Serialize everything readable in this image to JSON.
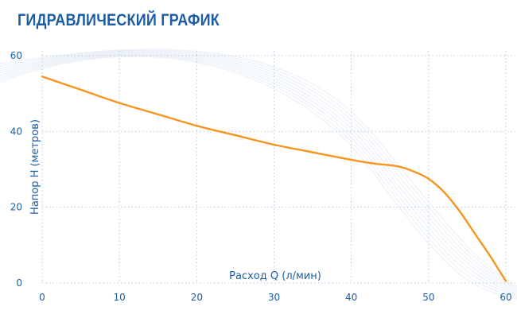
{
  "header": {
    "title": "ГИДРАВЛИЧЕСКИЙ ГРАФИК"
  },
  "chart_data": {
    "type": "line",
    "title": "ГИДРАВЛИЧЕСКИЙ ГРАФИК",
    "xlabel": "Расход Q (л/мин)",
    "ylabel": "Напор H (метров)",
    "xlim": [
      0,
      60
    ],
    "ylim": [
      0,
      60
    ],
    "xticks": [
      0,
      10,
      20,
      30,
      40,
      50,
      60
    ],
    "yticks": [
      0,
      20,
      40,
      60
    ],
    "grid": true,
    "colors": {
      "line": "#f7941d",
      "text": "#1b5ea6",
      "grid": "#b9cbe0"
    },
    "series": [
      {
        "x": [
          0,
          5,
          10,
          15,
          20,
          25,
          30,
          35,
          40,
          43,
          46,
          48,
          50,
          52,
          54,
          56,
          58,
          60
        ],
        "values": [
          54.5,
          51,
          47.5,
          44.5,
          41.5,
          39,
          36.5,
          34.5,
          32.5,
          31.5,
          30.8,
          29.5,
          27.5,
          24,
          19,
          13,
          7,
          0.5
        ]
      }
    ]
  }
}
